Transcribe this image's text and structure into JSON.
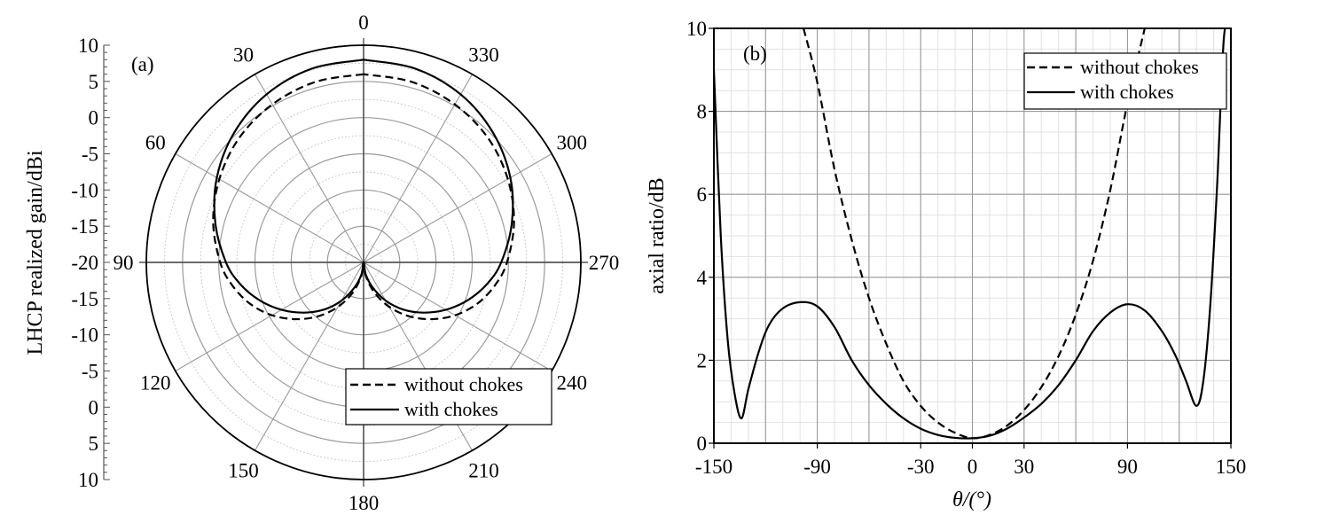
{
  "chart_data": [
    {
      "type": "polar-line",
      "panel_label": "(a)",
      "ylabel": "LHCP realized gain/dBi",
      "radial_tick_labels": [
        "10",
        "5",
        "0",
        "-5",
        "-10",
        "-15",
        "-20",
        "-15",
        "-10",
        "-5",
        "0",
        "5",
        "10"
      ],
      "angle_labels": [
        "0",
        "30",
        "60",
        "90",
        "120",
        "150",
        "180",
        "210",
        "240",
        "270",
        "300",
        "330"
      ],
      "rlim": [
        -20,
        10
      ],
      "legend": [
        "without chokes",
        "with chokes"
      ],
      "legend_position": "bottom-right",
      "series": [
        {
          "name": "without chokes",
          "style": "dashed",
          "theta_deg": [
            0,
            15,
            30,
            45,
            60,
            75,
            90,
            100,
            110,
            120,
            130,
            140,
            150,
            160,
            170,
            180,
            190,
            200,
            210,
            220,
            230,
            240,
            250,
            260,
            270,
            285,
            300,
            315,
            330,
            345,
            360
          ],
          "gain_dbi": [
            6,
            5.8,
            5.2,
            4.3,
            3,
            1.5,
            -0.2,
            -1.6,
            -3.3,
            -5.4,
            -7.8,
            -10.3,
            -12.9,
            -15.5,
            -18,
            -20,
            -18,
            -15.5,
            -12.9,
            -10.3,
            -7.8,
            -5.4,
            -3.3,
            -1.6,
            -0.2,
            1.5,
            3,
            4.3,
            5.2,
            5.8,
            6
          ]
        },
        {
          "name": "with chokes",
          "style": "solid",
          "theta_deg": [
            0,
            15,
            30,
            45,
            60,
            75,
            90,
            100,
            110,
            120,
            130,
            140,
            150,
            160,
            170,
            180,
            190,
            200,
            210,
            220,
            230,
            240,
            250,
            260,
            270,
            285,
            300,
            315,
            330,
            345,
            360
          ],
          "gain_dbi": [
            8,
            7.7,
            6.8,
            5.3,
            3.4,
            1.2,
            -1,
            -2.7,
            -4.7,
            -6.9,
            -9.2,
            -11.5,
            -13.9,
            -16.3,
            -18.3,
            -20,
            -18.3,
            -16.3,
            -13.9,
            -11.5,
            -9.2,
            -6.9,
            -4.7,
            -2.7,
            -1,
            1.2,
            3.4,
            5.3,
            6.8,
            7.7,
            8
          ]
        }
      ]
    },
    {
      "type": "line",
      "panel_label": "(b)",
      "xlabel": "θ/(°)",
      "ylabel": "axial ratio/dB",
      "xlim": [
        -150,
        150
      ],
      "ylim": [
        0,
        10
      ],
      "x_ticks": [
        "-150",
        "-90",
        "-30",
        "0",
        "30",
        "90",
        "150"
      ],
      "y_ticks": [
        "0",
        "2",
        "4",
        "6",
        "8",
        "10"
      ],
      "grid": true,
      "legend": [
        "without chokes",
        "with chokes"
      ],
      "legend_position": "top-right",
      "series": [
        {
          "name": "without chokes",
          "style": "dashed",
          "x": [
            -98,
            -90,
            -80,
            -70,
            -60,
            -50,
            -40,
            -30,
            -20,
            -10,
            0,
            10,
            20,
            30,
            40,
            50,
            60,
            70,
            80,
            90,
            100
          ],
          "y": [
            10,
            8.7,
            6.6,
            4.9,
            3.5,
            2.4,
            1.5,
            0.9,
            0.5,
            0.25,
            0.12,
            0.2,
            0.42,
            0.8,
            1.35,
            2.1,
            3.1,
            4.4,
            6.1,
            8.2,
            10
          ]
        },
        {
          "name": "with chokes",
          "style": "solid",
          "x": [
            -150,
            -146,
            -142,
            -138,
            -134,
            -130,
            -124,
            -118,
            -110,
            -100,
            -90,
            -80,
            -70,
            -60,
            -50,
            -40,
            -30,
            -20,
            -10,
            0,
            10,
            20,
            30,
            40,
            50,
            60,
            70,
            80,
            90,
            100,
            110,
            118,
            124,
            130,
            134,
            138,
            142,
            146,
            150
          ],
          "y": [
            9,
            5,
            2.5,
            1.2,
            0.6,
            1.3,
            2.2,
            2.85,
            3.25,
            3.4,
            3.3,
            2.8,
            2.0,
            1.4,
            0.95,
            0.6,
            0.35,
            0.2,
            0.13,
            0.12,
            0.18,
            0.35,
            0.62,
            0.95,
            1.4,
            2.0,
            2.7,
            3.15,
            3.35,
            3.2,
            2.7,
            2.1,
            1.5,
            0.9,
            1.5,
            3.3,
            6.2,
            9.8,
            10
          ]
        }
      ]
    }
  ]
}
